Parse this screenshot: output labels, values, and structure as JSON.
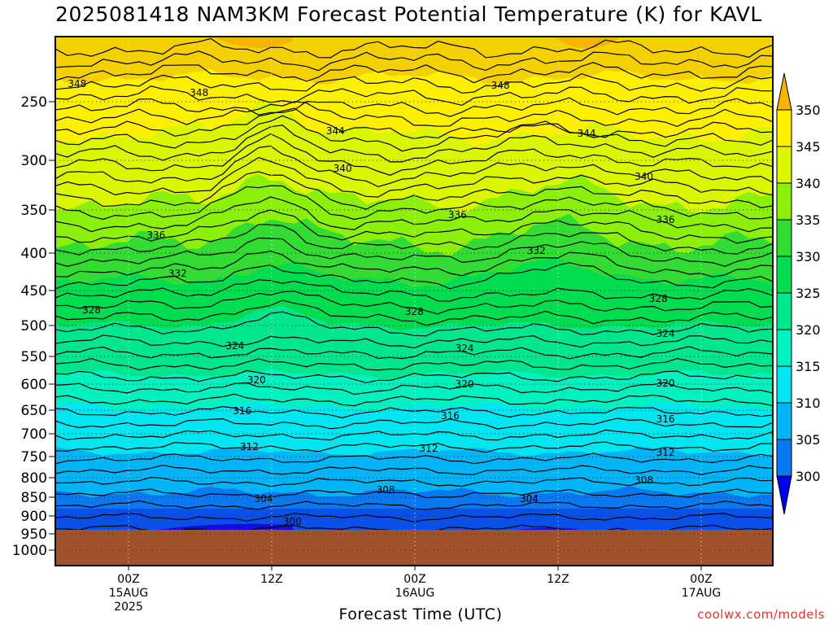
{
  "title": "2025081418 NAM3KM Forecast Potential Temperature (K) for KAVL",
  "credit": "coolwx.com/models",
  "chart_data": {
    "type": "heatmap",
    "title": "2025081418 NAM3KM Forecast Potential Temperature (K) for KAVL",
    "xlabel": "Forecast Time (UTC)",
    "ylabel": "",
    "y_axis_ticks": [
      "250",
      "300",
      "350",
      "400",
      "450",
      "500",
      "550",
      "600",
      "650",
      "700",
      "750",
      "800",
      "850",
      "900",
      "950",
      "1000"
    ],
    "x_axis_ticks": [
      {
        "label": "00Z",
        "sub": [
          "15AUG",
          "2025"
        ]
      },
      {
        "label": "12Z",
        "sub": []
      },
      {
        "label": "00Z",
        "sub": [
          "16AUG"
        ]
      },
      {
        "label": "12Z",
        "sub": []
      },
      {
        "label": "00Z",
        "sub": [
          "17AUG"
        ]
      }
    ],
    "colorbar_levels": [
      300,
      305,
      310,
      315,
      320,
      325,
      330,
      335,
      340,
      345,
      350
    ],
    "colorbar_colors": [
      "#1010d8",
      "#0a4fe6",
      "#0a78f0",
      "#00b4f5",
      "#00e6f0",
      "#00f0c0",
      "#00e68c",
      "#00dc50",
      "#32dc32",
      "#8cf00a",
      "#dcf500",
      "#fff000"
    ],
    "colorbar_extend_low": "#0000f0",
    "colorbar_extend_high": "#f5b400",
    "ground_color": "#a0522d",
    "contour_labels": [
      {
        "value": 348,
        "x": 0.01,
        "y": 202
      },
      {
        "value": 348,
        "x": 0.18,
        "y": 213
      },
      {
        "value": 348,
        "x": 0.6,
        "y": 204
      },
      {
        "value": 344,
        "x": 0.37,
        "y": 260
      },
      {
        "value": 344,
        "x": 0.72,
        "y": 263
      },
      {
        "value": 340,
        "x": 0.38,
        "y": 306
      },
      {
        "value": 340,
        "x": 0.8,
        "y": 316
      },
      {
        "value": 336,
        "x": 0.12,
        "y": 388
      },
      {
        "value": 336,
        "x": 0.54,
        "y": 363
      },
      {
        "value": 336,
        "x": 0.83,
        "y": 369
      },
      {
        "value": 332,
        "x": 0.15,
        "y": 435
      },
      {
        "value": 332,
        "x": 0.65,
        "y": 407
      },
      {
        "value": 328,
        "x": 0.03,
        "y": 480
      },
      {
        "value": 328,
        "x": 0.48,
        "y": 482
      },
      {
        "value": 328,
        "x": 0.82,
        "y": 466
      },
      {
        "value": 324,
        "x": 0.23,
        "y": 524
      },
      {
        "value": 324,
        "x": 0.55,
        "y": 527
      },
      {
        "value": 324,
        "x": 0.83,
        "y": 509
      },
      {
        "value": 320,
        "x": 0.26,
        "y": 566
      },
      {
        "value": 320,
        "x": 0.55,
        "y": 571
      },
      {
        "value": 320,
        "x": 0.83,
        "y": 570
      },
      {
        "value": 316,
        "x": 0.24,
        "y": 604
      },
      {
        "value": 316,
        "x": 0.53,
        "y": 610
      },
      {
        "value": 316,
        "x": 0.83,
        "y": 614
      },
      {
        "value": 312,
        "x": 0.25,
        "y": 648
      },
      {
        "value": 312,
        "x": 0.5,
        "y": 650
      },
      {
        "value": 312,
        "x": 0.83,
        "y": 655
      },
      {
        "value": 308,
        "x": 0.44,
        "y": 701
      },
      {
        "value": 308,
        "x": 0.8,
        "y": 689
      },
      {
        "value": 304,
        "x": 0.27,
        "y": 712
      },
      {
        "value": 304,
        "x": 0.64,
        "y": 712
      },
      {
        "value": 300,
        "x": 0.31,
        "y": 740
      }
    ]
  }
}
